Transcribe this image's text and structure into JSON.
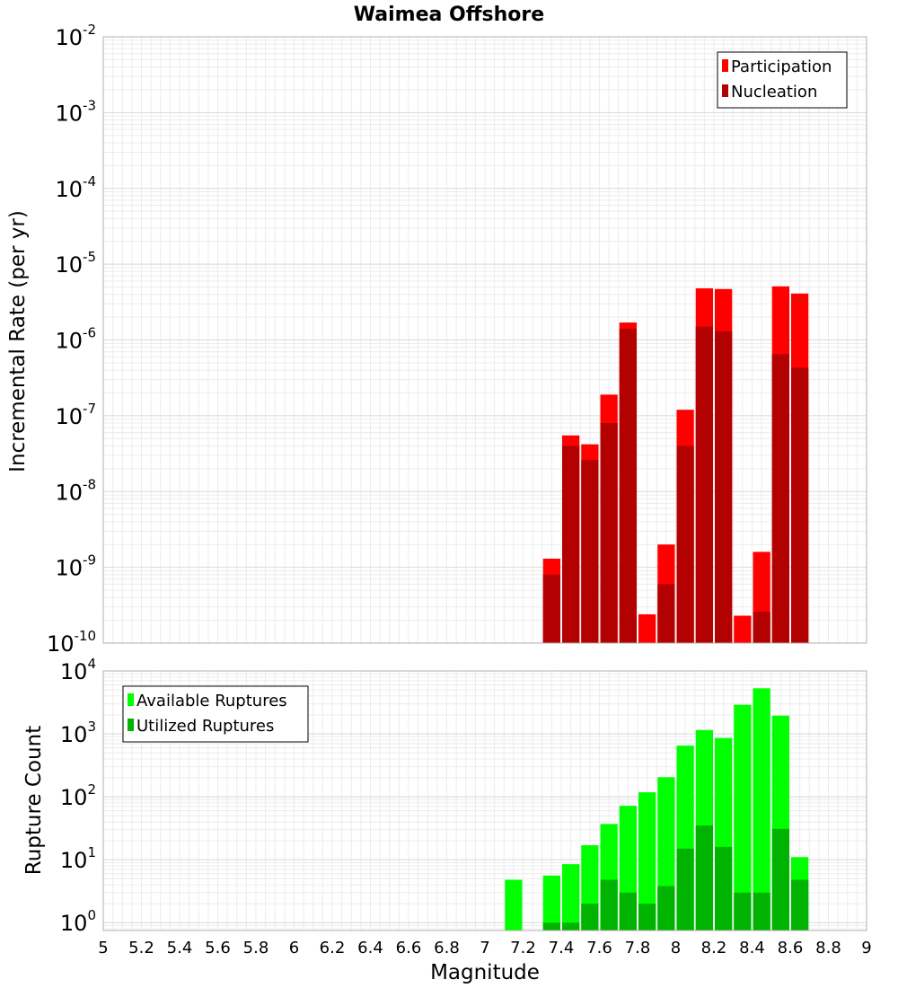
{
  "chart_data": [
    {
      "type": "bar",
      "title": "Waimea Offshore",
      "xlabel": "Magnitude",
      "ylabel": "Incremental Rate (per yr)",
      "xlim": [
        5,
        9
      ],
      "ylim": [
        1e-10,
        0.01
      ],
      "y_scale": "log",
      "grid": true,
      "legend_position": "top-right",
      "bin_width": 0.1,
      "x_ticks": [
        "5",
        "5.2",
        "5.4",
        "5.6",
        "5.8",
        "6",
        "6.2",
        "6.4",
        "6.6",
        "6.8",
        "7",
        "7.2",
        "7.4",
        "7.6",
        "7.8",
        "8",
        "8.2",
        "8.4",
        "8.6",
        "8.8",
        "9"
      ],
      "y_tick_exponents": [
        "-10",
        "-9",
        "-8",
        "-7",
        "-6",
        "-5",
        "-4",
        "-3",
        "-2"
      ],
      "x": [
        7.35,
        7.45,
        7.55,
        7.65,
        7.75,
        7.85,
        7.95,
        8.05,
        8.15,
        8.25,
        8.35,
        8.45,
        8.55,
        8.65
      ],
      "series": [
        {
          "name": "Participation",
          "color": "#ff0000",
          "values": [
            1.3e-09,
            5.5e-08,
            4.2e-08,
            1.9e-07,
            1.7e-06,
            2.4e-10,
            2e-09,
            1.2e-07,
            4.8e-06,
            4.7e-06,
            2.3e-10,
            1.6e-09,
            5.1e-06,
            4.1e-06
          ]
        },
        {
          "name": "Nucleation",
          "color": "#b30000",
          "values": [
            8e-10,
            4e-08,
            2.6e-08,
            8e-08,
            1.4e-06,
            1e-10,
            6e-10,
            4e-08,
            1.5e-06,
            1.3e-06,
            1e-10,
            2.6e-10,
            6.5e-07,
            4.3e-07
          ]
        }
      ]
    },
    {
      "type": "bar",
      "title": "",
      "xlabel": "Magnitude",
      "ylabel": "Rupture Count",
      "xlim": [
        5,
        9
      ],
      "ylim": [
        0.75,
        10000
      ],
      "y_scale": "log",
      "grid": true,
      "legend_position": "top-left",
      "bin_width": 0.1,
      "y_tick_exponents": [
        "0",
        "1",
        "2",
        "3",
        "4"
      ],
      "x": [
        7.15,
        7.35,
        7.45,
        7.55,
        7.65,
        7.75,
        7.85,
        7.95,
        8.05,
        8.15,
        8.25,
        8.35,
        8.45,
        8.55,
        8.65
      ],
      "series": [
        {
          "name": "Available Ruptures",
          "color": "#00ff00",
          "values": [
            4.8,
            5.6,
            8.5,
            17,
            37,
            72,
            118,
            205,
            650,
            1150,
            860,
            2900,
            5300,
            1950,
            11
          ]
        },
        {
          "name": "Utilized Ruptures",
          "color": "#00b300",
          "values": [
            0,
            1,
            1,
            2,
            4.8,
            3,
            2,
            3.8,
            15,
            35,
            16,
            3,
            3,
            31,
            4.8
          ]
        }
      ]
    }
  ]
}
